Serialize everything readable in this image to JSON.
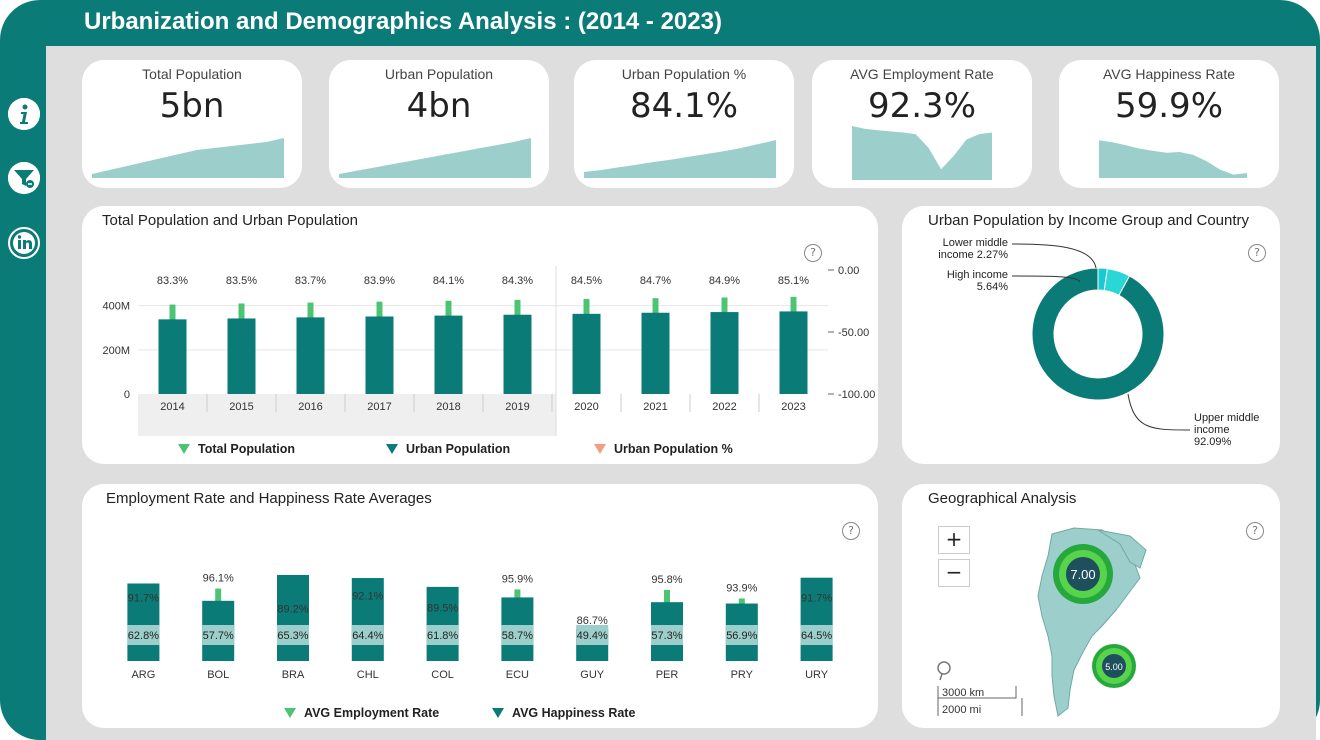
{
  "title": "Urbanization and Demographics Analysis : (2014 - 2023)",
  "sidebar": {
    "icons": [
      "info-icon",
      "filter-clear-icon",
      "linkedin-icon"
    ]
  },
  "kpis": [
    {
      "label": "Total Population",
      "value": "5bn",
      "trend": [
        0.1,
        0.2,
        0.3,
        0.4,
        0.5,
        0.6,
        0.7,
        0.75,
        0.8,
        0.85,
        0.9,
        1.0
      ]
    },
    {
      "label": "Urban Population",
      "value": "4bn",
      "trend": [
        0.1,
        0.18,
        0.26,
        0.34,
        0.42,
        0.5,
        0.58,
        0.66,
        0.74,
        0.82,
        0.9,
        1.0
      ]
    },
    {
      "label": "Urban Population %",
      "value": "84.1%",
      "trend": [
        0.15,
        0.2,
        0.27,
        0.33,
        0.4,
        0.46,
        0.53,
        0.6,
        0.67,
        0.75,
        0.85,
        0.95
      ]
    },
    {
      "label": "AVG Employment Rate",
      "value": "92.3%",
      "trend": [
        1.0,
        0.95,
        0.92,
        0.9,
        0.88,
        0.85,
        0.6,
        0.2,
        0.45,
        0.75,
        0.85,
        0.88
      ]
    },
    {
      "label": "AVG Happiness Rate",
      "value": "59.9%",
      "trend": [
        0.9,
        0.85,
        0.78,
        0.7,
        0.65,
        0.6,
        0.62,
        0.55,
        0.4,
        0.2,
        0.08,
        0.12
      ]
    }
  ],
  "accent": "#0b7b78",
  "light_green": "#4cc474",
  "chart_data": [
    {
      "type": "bar",
      "title": "Total Population and Urban Population",
      "categories": [
        "2014",
        "2015",
        "2016",
        "2017",
        "2018",
        "2019",
        "2020",
        "2021",
        "2022",
        "2023"
      ],
      "series": [
        {
          "name": "Total Population",
          "color": "#4cc474",
          "values": [
            405,
            410,
            414,
            418,
            422,
            426,
            430,
            434,
            437,
            440
          ]
        },
        {
          "name": "Urban Population",
          "color": "#0b7b78",
          "values": [
            338,
            342,
            347,
            351,
            355,
            359,
            363,
            368,
            371,
            374
          ]
        },
        {
          "name": "Urban Population %",
          "color": "#f0a080",
          "labels": [
            "83.3%",
            "83.5%",
            "83.7%",
            "83.9%",
            "84.1%",
            "84.3%",
            "84.5%",
            "84.7%",
            "84.9%",
            "85.1%"
          ]
        }
      ],
      "y_ticks": [
        "400M",
        "200M",
        "0"
      ],
      "y2_ticks": [
        "0.00",
        "-50.00",
        "-100.00"
      ],
      "ylim": [
        0,
        480
      ]
    },
    {
      "type": "pie",
      "title": "Urban Population by Income Group and Country",
      "labels": [
        "Upper middle income",
        "High income",
        "Lower middle income"
      ],
      "values": [
        92.09,
        5.64,
        2.27
      ],
      "display": [
        "Upper middle\nincome\n92.09%",
        "High income\n5.64%",
        "Lower middle\nincome 2.27%"
      ],
      "colors": [
        "#0b7b78",
        "#2ad6d6",
        "#19c8d0"
      ]
    },
    {
      "type": "bar",
      "title": "Employment Rate and Happiness Rate Averages",
      "categories": [
        "ARG",
        "BOL",
        "BRA",
        "CHL",
        "COL",
        "ECU",
        "GUY",
        "PER",
        "PRY",
        "URY"
      ],
      "series": [
        {
          "name": "AVG Employment Rate",
          "color": "#4cc474",
          "values": [
            91.7,
            96.1,
            89.2,
            92.1,
            89.5,
            95.9,
            86.7,
            95.8,
            93.9,
            91.7
          ],
          "labels": [
            "91.7%",
            "96.1%",
            "89.2%",
            "92.1%",
            "89.5%",
            "95.9%",
            "86.7%",
            "95.8%",
            "93.9%",
            "91.7%"
          ]
        },
        {
          "name": "AVG Happiness Rate",
          "color": "#0b7b78",
          "values": [
            62.8,
            57.7,
            65.3,
            64.4,
            61.8,
            58.7,
            49.4,
            57.3,
            56.9,
            64.5
          ],
          "labels": [
            "62.8%",
            "57.7%",
            "65.3%",
            "64.4%",
            "61.8%",
            "58.7%",
            "49.4%",
            "57.3%",
            "56.9%",
            "64.5%"
          ]
        }
      ]
    }
  ],
  "geo": {
    "title": "Geographical Analysis",
    "zoom_in": "+",
    "zoom_out": "−",
    "bubbles": [
      {
        "label": "7.00"
      },
      {
        "label": "5.00"
      }
    ],
    "scale_km": "3000 km",
    "scale_mi": "2000 mi"
  },
  "help_text": "?"
}
